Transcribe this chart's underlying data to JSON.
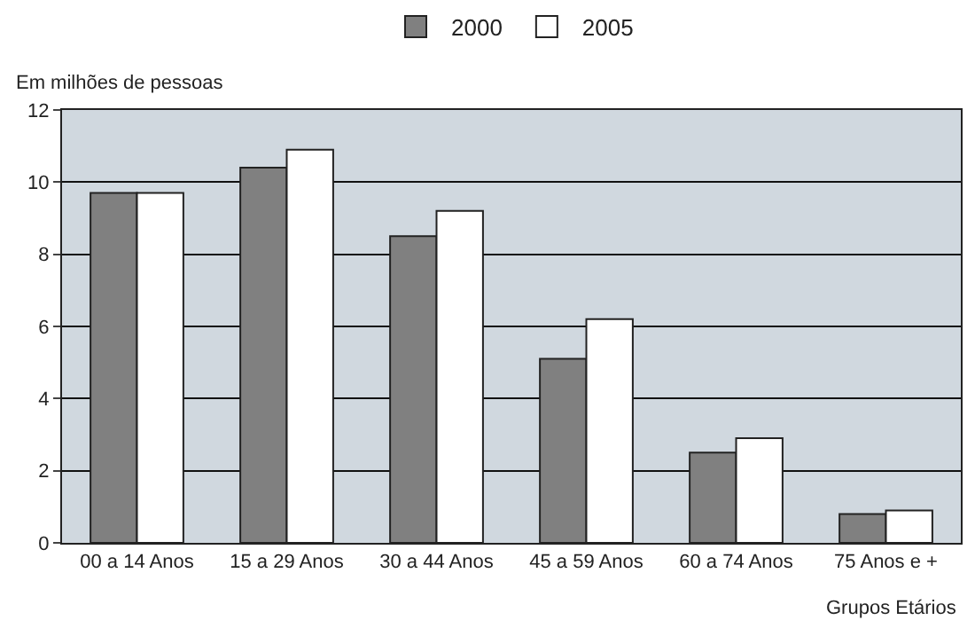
{
  "chart_data": {
    "type": "bar",
    "categories": [
      "00 a 14 Anos",
      "15 a 29 Anos",
      "30 a 44 Anos",
      "45 a 59 Anos",
      "60 a 74 Anos",
      "75 Anos e +"
    ],
    "series": [
      {
        "name": "2000",
        "color": "#808080",
        "values": [
          9.7,
          10.4,
          8.5,
          5.1,
          2.5,
          0.8
        ]
      },
      {
        "name": "2005",
        "color": "#ffffff",
        "values": [
          9.7,
          10.9,
          9.2,
          6.2,
          2.9,
          0.9
        ]
      }
    ],
    "ylabel": "Em milhões de pessoas",
    "xlabel": "Grupos Etários",
    "ylim": [
      0,
      12
    ],
    "yticks": [
      0,
      2,
      4,
      6,
      8,
      10,
      12
    ],
    "grid": "y",
    "legend": "top"
  }
}
